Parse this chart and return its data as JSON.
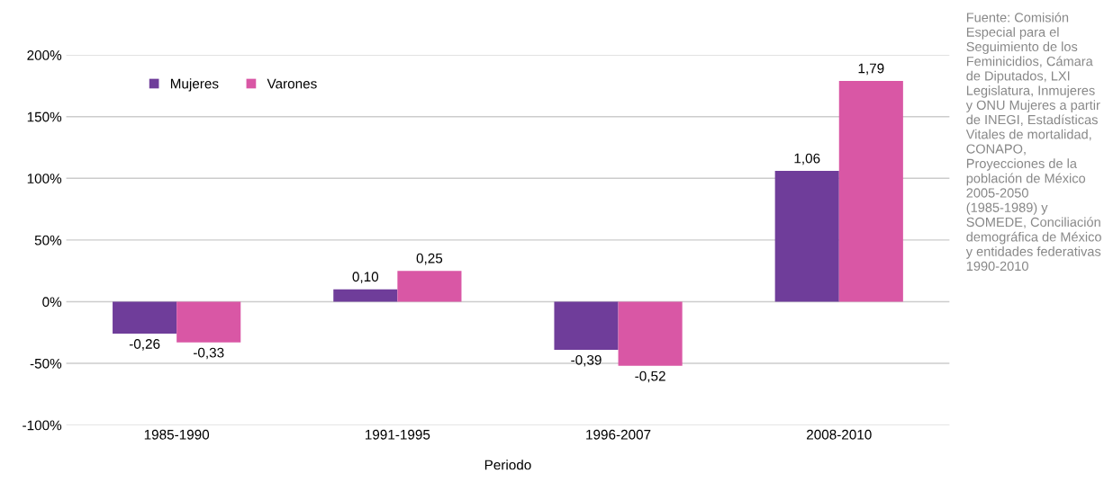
{
  "chart_data": {
    "type": "bar",
    "xlabel": "Periodo",
    "categories": [
      "1985-1990",
      "1991-1995",
      "1996-2007",
      "2008-2010"
    ],
    "series": [
      {
        "name": "Mujeres",
        "color": "#6f3d9a",
        "values": [
          -0.26,
          0.1,
          -0.39,
          1.06
        ],
        "value_labels": [
          "-0,26",
          "0,10",
          "-0,39",
          "1,06"
        ]
      },
      {
        "name": "Varones",
        "color": "#d957a5",
        "values": [
          -0.33,
          0.25,
          -0.52,
          1.79
        ],
        "value_labels": [
          "-0,33",
          "0,25",
          "-0,52",
          "1,79"
        ]
      }
    ],
    "ylim": [
      -1,
      2
    ],
    "yticks": [
      {
        "value": -1,
        "label": "-100%"
      },
      {
        "value": -0.5,
        "label": "-50%"
      },
      {
        "value": 0,
        "label": "0%"
      },
      {
        "value": 0.5,
        "label": "50%"
      },
      {
        "value": 1,
        "label": "100%"
      },
      {
        "value": 1.5,
        "label": "150%"
      },
      {
        "value": 2,
        "label": "200%"
      }
    ],
    "grid": "y",
    "legend": "top left",
    "annotations": [
      "Fuente: Comisión Especial para el Seguimiento de los Feminicidios, Cámara de Diputados, LXI Legislatura, Inmujeres y ONU Mujeres a partir de INEGI, Estadísticas Vitales de mortalidad, CONAPO, Proyecciones de la población de México 2005-2050 (1985-1989) y SOMEDE, Conciliación demográfica de México y entidades federativas 1990-2010"
    ]
  }
}
